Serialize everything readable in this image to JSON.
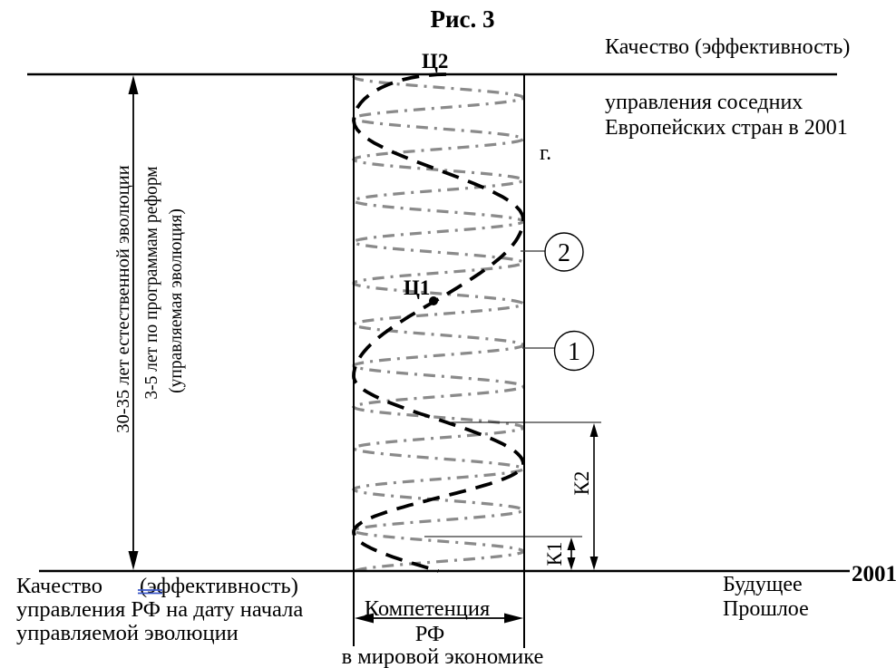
{
  "title": "Рис. 3",
  "axis": {
    "top_label_line1": "Качество (эффективность)",
    "top_label_line2": "управления соседних",
    "top_label_line3": "Европейских стран в 2001",
    "top_label_line4": "г.",
    "bottom_left_line1a": "Качество",
    "bottom_left_line1b": "(эффективность)",
    "bottom_left_line2": "управления РФ на дату начала",
    "bottom_left_line3": "управляемой эволюции",
    "year": "2001",
    "future": "Будущее",
    "past": "Прошлое"
  },
  "left_scale": {
    "line1": "30-35 лет естественной эволюции",
    "line2": "3-5 лет по программам реформ",
    "line3": "(управляемая эволюция)"
  },
  "column": {
    "goal_top": "Ц2",
    "goal_mid": "Ц1",
    "competence_line1": "Компетенция",
    "competence_line2": "РФ",
    "competence_line3": "в мировой экономике"
  },
  "dimensions": {
    "k1": "К1",
    "k2": "К2"
  },
  "callouts": {
    "n1": "1",
    "n2": "2"
  },
  "colors": {
    "curve_black": "#000000",
    "curve_gray": "#8a8a8a",
    "underline_blue": "#3a56c8"
  }
}
